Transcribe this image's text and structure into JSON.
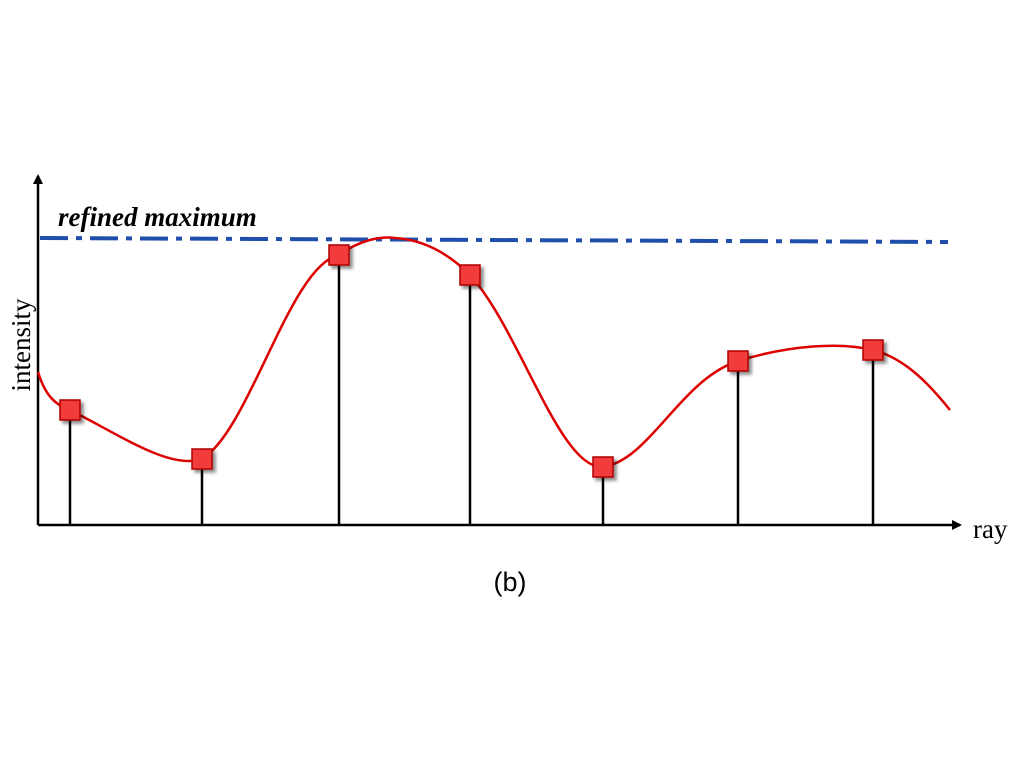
{
  "annotation": "refined maximum",
  "y_axis_label": "intensity",
  "x_axis_label": "ray",
  "caption": "(b)"
}
